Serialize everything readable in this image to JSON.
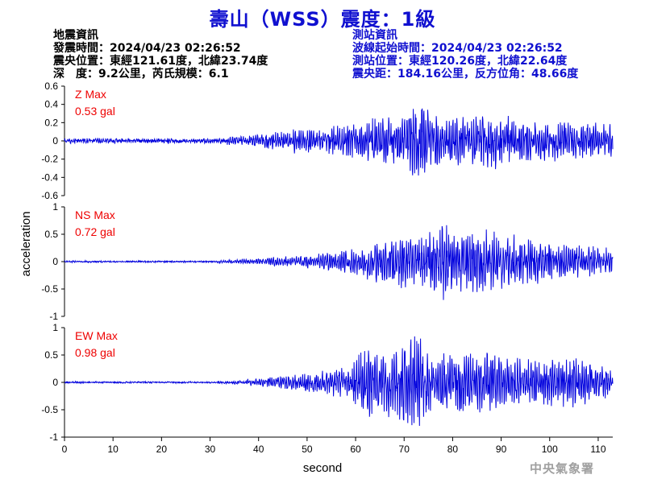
{
  "header": {
    "title": "壽山（WSS）震度：1級",
    "quake_info": {
      "heading": "地震資訊",
      "origin_time": "發震時間：2024/04/23 02:26:52",
      "epicenter": "震央位置：東經121.61度，北緯23.74度",
      "depth_magnitude": "深　度：9.2公里，芮氏規模：6.1"
    },
    "station_info": {
      "heading": "測站資訊",
      "waveform_start": "波線起始時間：2024/04/23 02:26:52",
      "station_location": "測站位置：東經120.26度，北緯22.64度",
      "distance_azimuth": "震央距：184.16公里，反方位角：48.66度"
    }
  },
  "credit": "中央氣象署",
  "colors": {
    "trace": "#0000dd",
    "title": "#1010d0",
    "peak_label": "#ee0000",
    "text": "#000000",
    "credit": "#a0a0a0"
  },
  "chart_data": {
    "type": "line",
    "xlabel": "second",
    "ylabel": "acceleration",
    "xlim": [
      0,
      113
    ],
    "xticks": [
      0,
      10,
      20,
      30,
      40,
      50,
      60,
      70,
      80,
      90,
      100,
      110
    ],
    "grid": false,
    "panels": [
      {
        "name": "Z",
        "peak_label": "Z Max",
        "peak_value": "0.53 gal",
        "ylim": [
          -0.6,
          0.6
        ],
        "yticks": [
          -0.6,
          -0.4,
          -0.2,
          0,
          0.2,
          0.4,
          0.6
        ],
        "envelope": {
          "t": [
            0,
            30,
            36,
            42,
            50,
            58,
            64,
            70,
            73,
            76,
            80,
            88,
            95,
            100,
            105,
            113
          ],
          "amp": [
            0.02,
            0.02,
            0.05,
            0.1,
            0.14,
            0.16,
            0.26,
            0.3,
            0.5,
            0.3,
            0.26,
            0.34,
            0.22,
            0.24,
            0.2,
            0.2
          ]
        },
        "noise": 0.015,
        "seed": 11
      },
      {
        "name": "NS",
        "peak_label": "NS Max",
        "peak_value": "0.72 gal",
        "ylim": [
          -1,
          1
        ],
        "yticks": [
          -1,
          -0.5,
          0,
          0.5,
          1
        ],
        "envelope": {
          "t": [
            0,
            30,
            36,
            42,
            50,
            58,
            64,
            70,
            73,
            78,
            82,
            88,
            95,
            100,
            105,
            113
          ],
          "amp": [
            0.01,
            0.01,
            0.04,
            0.08,
            0.12,
            0.22,
            0.4,
            0.5,
            0.45,
            0.72,
            0.55,
            0.6,
            0.45,
            0.38,
            0.3,
            0.28
          ]
        },
        "noise": 0.01,
        "seed": 23
      },
      {
        "name": "EW",
        "peak_label": "EW Max",
        "peak_value": "0.98 gal",
        "ylim": [
          -1,
          1
        ],
        "yticks": [
          -1,
          -0.5,
          0,
          0.5,
          1
        ],
        "envelope": {
          "t": [
            0,
            30,
            36,
            42,
            50,
            58,
            62,
            68,
            72,
            76,
            82,
            88,
            95,
            100,
            106,
            113
          ],
          "amp": [
            0.01,
            0.01,
            0.04,
            0.1,
            0.18,
            0.3,
            0.75,
            0.6,
            0.98,
            0.55,
            0.6,
            0.55,
            0.45,
            0.5,
            0.45,
            0.25
          ]
        },
        "noise": 0.01,
        "seed": 37
      }
    ]
  }
}
